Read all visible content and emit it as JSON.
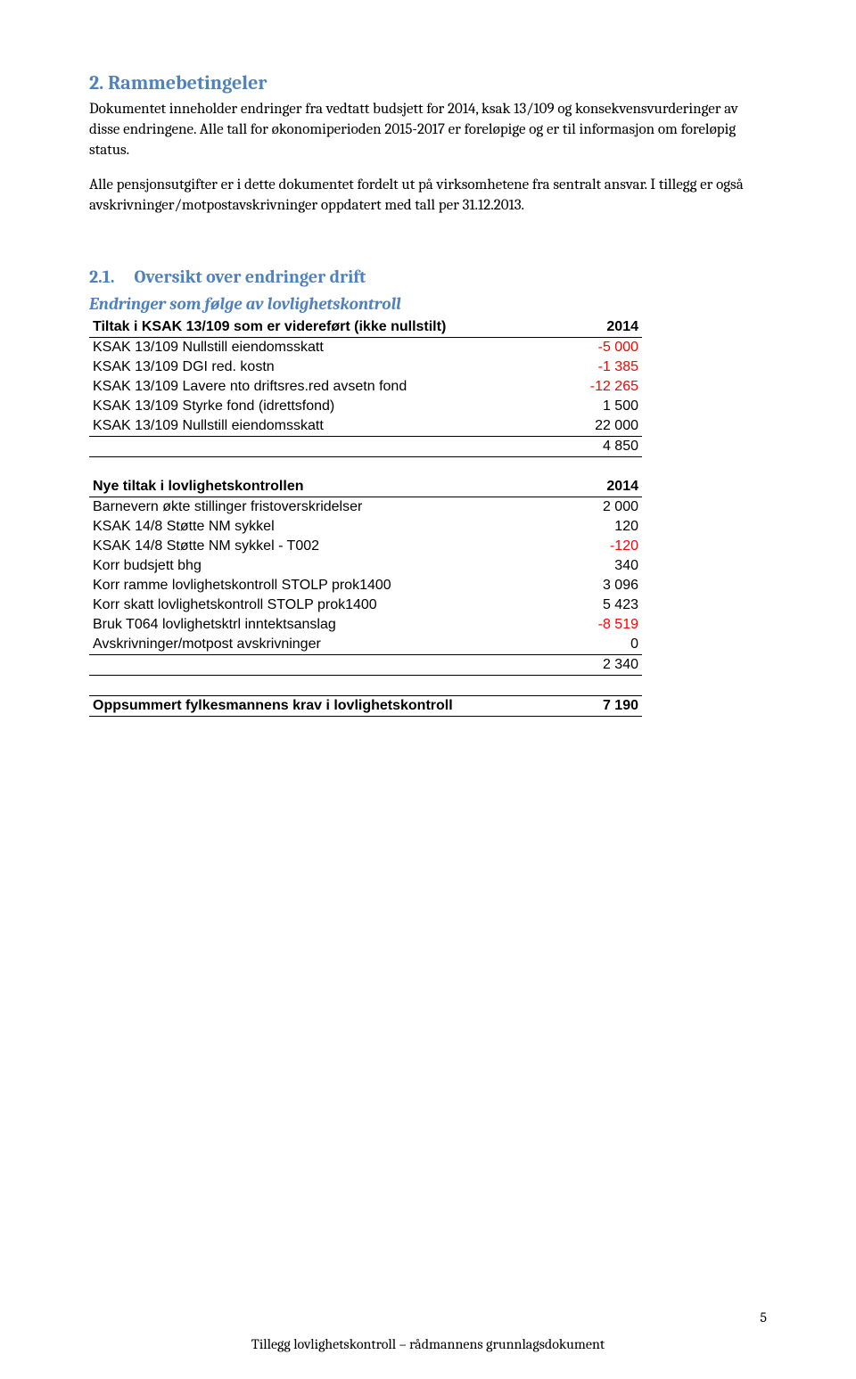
{
  "section": {
    "number": "2.",
    "title": "Rammebetingeler",
    "para1": "Dokumentet inneholder endringer fra vedtatt budsjett for 2014, ksak 13/109  og konsekvensvurderinger av disse endringene. Alle tall for økonomiperioden 2015-2017 er foreløpige og er til informasjon om foreløpig status.",
    "para2": "Alle pensjonsutgifter er i dette dokumentet fordelt ut på virksomhetene fra sentralt ansvar. I tillegg er også avskrivninger/motpostavskrivninger oppdatert med tall per 31.12.2013."
  },
  "subsection": {
    "number": "2.1.",
    "title": "Oversikt over endringer drift",
    "subtitle": "Endringer som følge av lovlighetskontroll"
  },
  "table1": {
    "header": {
      "label": "Tiltak i KSAK 13/109 som er videreført (ikke nullstilt)",
      "year": "2014"
    },
    "rows": [
      {
        "label": "KSAK 13/109 Nullstill eiendomsskatt",
        "value": "-5 000",
        "neg": true
      },
      {
        "label": "KSAK 13/109 DGI red. kostn",
        "value": "-1 385",
        "neg": true
      },
      {
        "label": "KSAK 13/109 Lavere nto driftsres.red avsetn fond",
        "value": "-12 265",
        "neg": true
      },
      {
        "label": "KSAK 13/109 Styrke fond (idrettsfond)",
        "value": "1 500",
        "neg": false
      },
      {
        "label": "KSAK 13/109 Nullstill eiendomsskatt",
        "value": "22 000",
        "neg": false
      }
    ],
    "sum": "4 850"
  },
  "table2": {
    "header": {
      "label": "Nye tiltak i lovlighetskontrollen",
      "year": "2014"
    },
    "rows": [
      {
        "label": "Barnevern økte stillinger fristoverskridelser",
        "value": "2 000",
        "neg": false
      },
      {
        "label": "KSAK 14/8 Støtte NM sykkel",
        "value": "120",
        "neg": false
      },
      {
        "label": "KSAK 14/8 Støtte NM sykkel - T002",
        "value": "-120",
        "neg": true
      },
      {
        "label": "Korr budsjett bhg",
        "value": "340",
        "neg": false
      },
      {
        "label": "Korr ramme lovlighetskontroll STOLP prok1400",
        "value": "3 096",
        "neg": false
      },
      {
        "label": "Korr skatt lovlighetskontroll STOLP prok1400",
        "value": "5 423",
        "neg": false
      },
      {
        "label": "Bruk T064 lovlighetsktrl inntektsanslag",
        "value": "-8 519",
        "neg": true
      },
      {
        "label": "Avskrivninger/motpost avskrivninger",
        "value": "0",
        "neg": false
      }
    ],
    "sum": "2 340"
  },
  "summary": {
    "label": "Oppsummert fylkesmannens krav i lovlighetskontroll",
    "value": "7 190"
  },
  "footer": {
    "text": "Tillegg lovlighetskontroll – rådmannens grunnlagsdokument",
    "page": "5"
  }
}
